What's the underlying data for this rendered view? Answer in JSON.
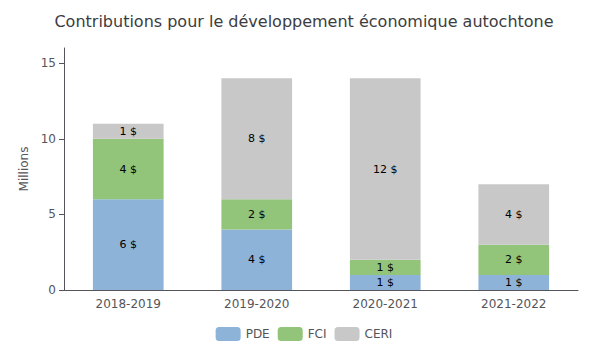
{
  "chart_data": {
    "type": "bar",
    "title": "Contributions pour le développement économique autochtone",
    "categories": [
      "2018-2019",
      "2019-2020",
      "2020-2021",
      "2021-2022"
    ],
    "series": [
      {
        "name": "PDE",
        "color": "#8DB4D8",
        "values": [
          6,
          4,
          1,
          1
        ],
        "value_labels": [
          "6 $",
          "4 $",
          "1 $",
          "1 $"
        ]
      },
      {
        "name": "FCI",
        "color": "#92C47A",
        "values": [
          4,
          2,
          1,
          2
        ],
        "value_labels": [
          "4 $",
          "2 $",
          "1 $",
          "2 $"
        ]
      },
      {
        "name": "CERI",
        "color": "#C8C8C8",
        "values": [
          1,
          8,
          12,
          4
        ],
        "value_labels": [
          "1 $",
          "8 $",
          "12 $",
          "4 $"
        ]
      }
    ],
    "stacked": true,
    "data_labels": true,
    "ylabel": "Millions",
    "ylim": [
      0,
      16
    ],
    "yticks": [
      0,
      5,
      10,
      15
    ],
    "grid": false,
    "legend": "bottom"
  }
}
